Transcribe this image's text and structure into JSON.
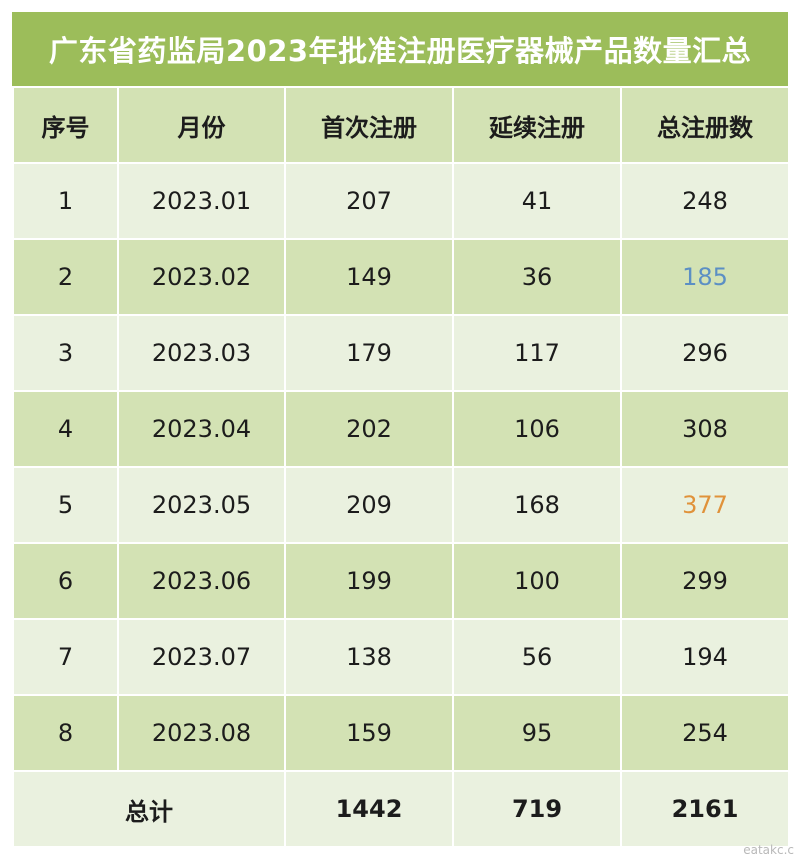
{
  "title": "广东省药监局2023年批准注册医疗器械产品数量汇总",
  "columns": [
    "序号",
    "月份",
    "首次注册",
    "延续注册",
    "总注册数"
  ],
  "rows": [
    {
      "idx": "1",
      "month": "2023.01",
      "first": "207",
      "renew": "41",
      "total": "248"
    },
    {
      "idx": "2",
      "month": "2023.02",
      "first": "149",
      "renew": "36",
      "total": "185"
    },
    {
      "idx": "3",
      "month": "2023.03",
      "first": "179",
      "renew": "117",
      "total": "296"
    },
    {
      "idx": "4",
      "month": "2023.04",
      "first": "202",
      "renew": "106",
      "total": "308"
    },
    {
      "idx": "5",
      "month": "2023.05",
      "first": "209",
      "renew": "168",
      "total": "377"
    },
    {
      "idx": "6",
      "month": "2023.06",
      "first": "199",
      "renew": "100",
      "total": "299"
    },
    {
      "idx": "7",
      "month": "2023.07",
      "first": "138",
      "renew": "56",
      "total": "194"
    },
    {
      "idx": "8",
      "month": "2023.08",
      "first": "159",
      "renew": "95",
      "total": "254"
    }
  ],
  "summary": {
    "label": "总计",
    "first": "1442",
    "renew": "719",
    "total": "2161"
  },
  "highlight_colors": {
    "min_total": "#5b8fc4",
    "max_total": "#e0923a"
  },
  "watermark": "eatakc.c"
}
